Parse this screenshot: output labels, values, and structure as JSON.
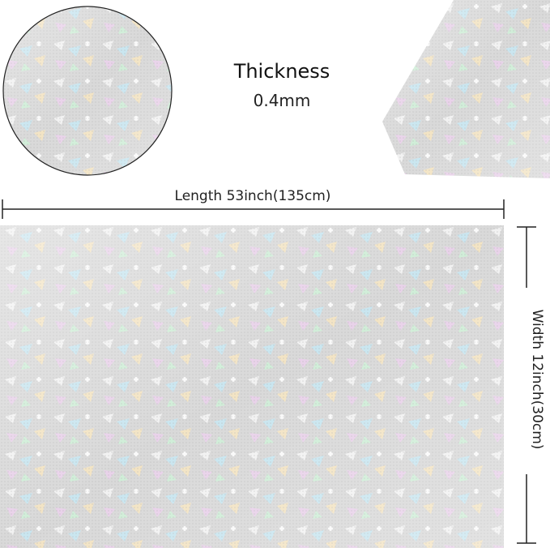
{
  "thickness": {
    "label": "Thickness",
    "value": "0.4mm"
  },
  "length": "Length 53inch(135cm)",
  "width": "Width 12inch(30cm)"
}
